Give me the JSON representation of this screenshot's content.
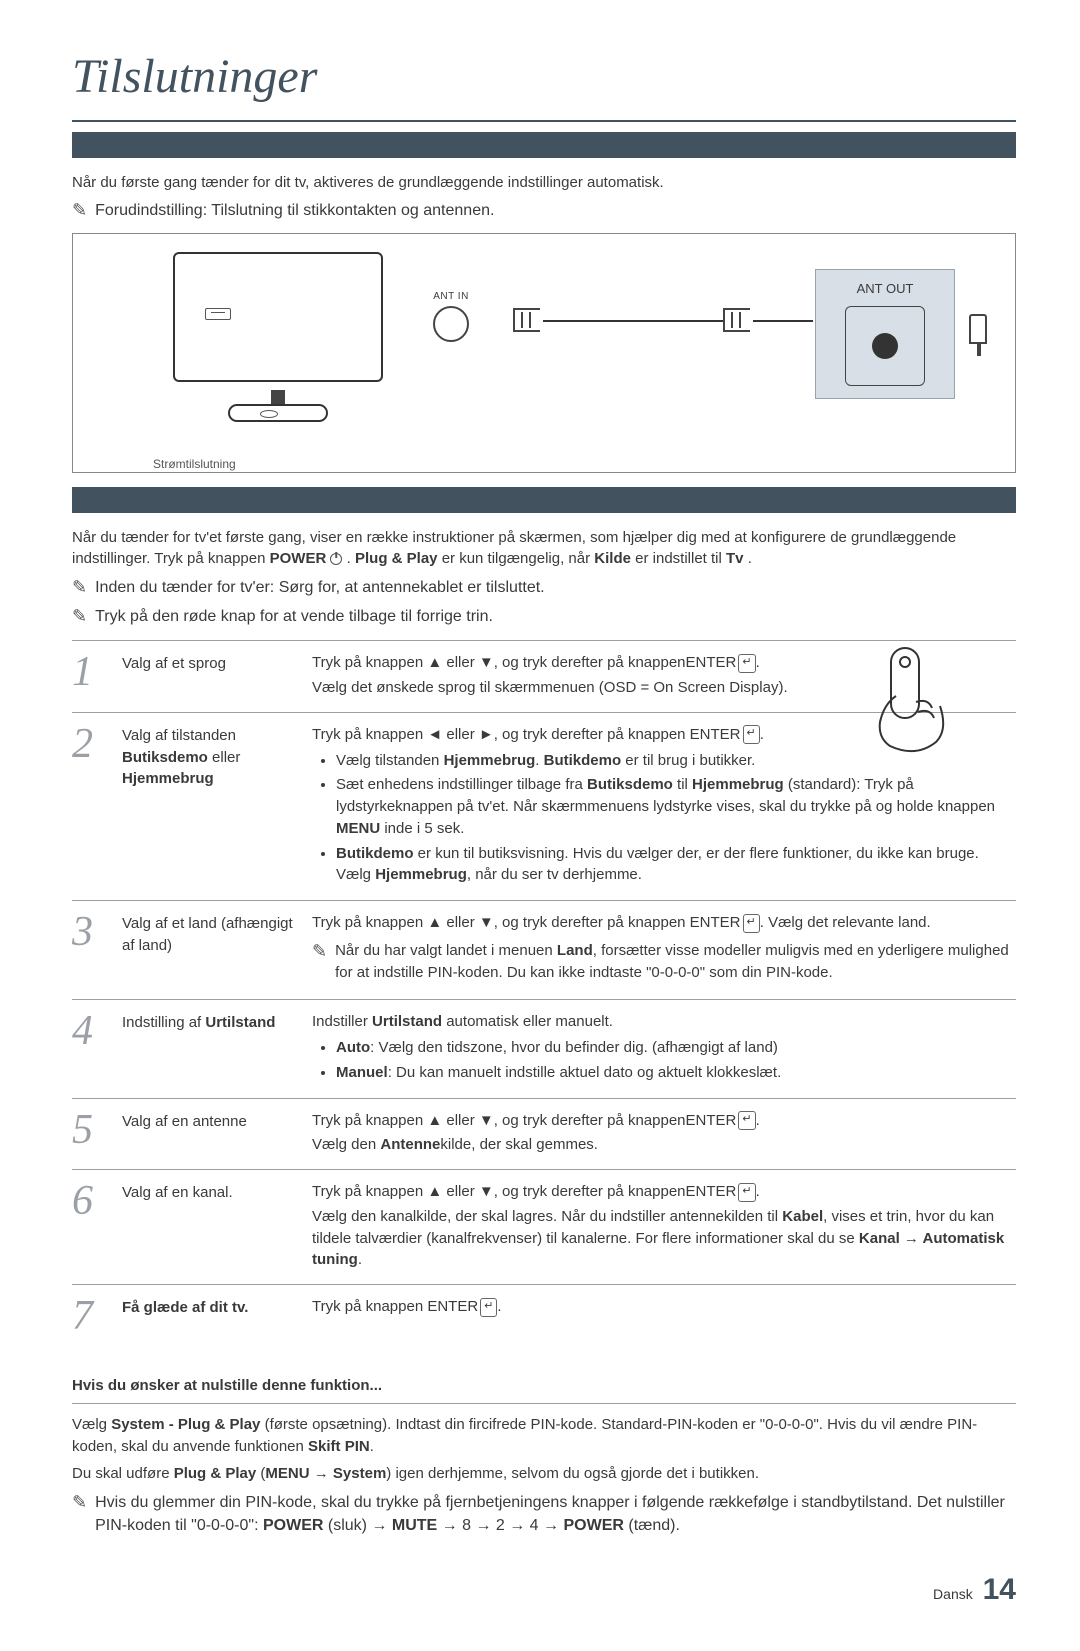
{
  "title": "Tilslutninger",
  "intro": "Når du første gang tænder for dit tv, aktiveres de grundlæggende indstillinger automatisk.",
  "intro_note": "Forudindstilling: Tilslutning til stikkontakten og antennen.",
  "diagram": {
    "ant_in": "ANT IN",
    "ant_out": "ANT OUT",
    "power_label": "Strømtilslutning"
  },
  "plug_intro_1": "Når du tænder for tv'et første gang, viser en række instruktioner på skærmen, som hjælper dig med at konfigurere de grundlæggende indstillinger. Tryk på knappen ",
  "plug_power": "POWER",
  "plug_intro_2": ". ",
  "plug_bold": "Plug & Play",
  "plug_intro_3": " er kun tilgængelig, når ",
  "plug_kilde": "Kilde",
  "plug_intro_4": " er indstillet til ",
  "plug_tv": "Tv",
  "plug_intro_5": ".",
  "note_ant": "Inden du tænder for tv'er: Sørg for, at antennekablet er tilsluttet.",
  "note_red": "Tryk på den røde knap for at vende tilbage til forrige trin.",
  "steps": [
    {
      "num": "1",
      "title": "Valg af et sprog",
      "body": "Tryk på knappen ▲ eller ▼, og tryk derefter på knappenENTER",
      "body2": "Vælg det ønskede sprog til skærmmenuen (OSD = On Screen Display)."
    },
    {
      "num": "2",
      "title_html": "Valg af tilstanden <b>Butiksdemo</b> eller <b>Hjemmebrug</b>",
      "line1": "Tryk på knappen ◄ eller ►, og tryk derefter på knappen ENTER",
      "bullets": [
        "Vælg tilstanden <b>Hjemmebrug</b>. <b>Butikdemo</b> er til brug i butikker.",
        "Sæt enhedens indstillinger tilbage fra <b>Butiksdemo</b> til <b>Hjemmebrug</b> (standard): Tryk på lydstyrkeknappen på tv'et. Når skærmmenuens lydstyrke vises, skal du trykke på og holde knappen <b>MENU</b> inde i 5 sek.",
        "<b>Butikdemo</b> er kun til butiksvisning. Hvis du vælger der, er der flere funktioner, du ikke kan bruge. Vælg <b>Hjemmebrug</b>, når du ser tv derhjemme."
      ]
    },
    {
      "num": "3",
      "title": "Valg af et land (afhængigt af land)",
      "line1": "Tryk på knappen ▲ eller ▼, og tryk derefter på knappen ENTER",
      "line1_after": ". Vælg det relevante land.",
      "note": "Når du har valgt landet i menuen <b>Land</b>, forsætter visse modeller muligvis med en yderligere mulighed for at indstille PIN-koden. Du kan ikke indtaste \"0-0-0-0\" som din PIN-kode."
    },
    {
      "num": "4",
      "title_html": "Indstilling af <b>Urtilstand</b>",
      "line1": "Indstiller <b>Urtilstand</b> automatisk eller manuelt.",
      "bullets": [
        "<b>Auto</b>: Vælg den tidszone, hvor du befinder dig. (afhængigt af land)",
        "<b>Manuel</b>: Du kan manuelt indstille aktuel dato og aktuelt klokkeslæt."
      ]
    },
    {
      "num": "5",
      "title": "Valg af en antenne",
      "line1": "Tryk på knappen ▲ eller ▼, og tryk derefter på knappenENTER",
      "line2": "Vælg den <b>Antenne</b>kilde, der skal gemmes."
    },
    {
      "num": "6",
      "title": "Valg af en kanal.",
      "line1": "Tryk på knappen ▲ eller ▼, og tryk derefter på knappenENTER",
      "line2": "Vælg den kanalkilde, der skal lagres. Når du indstiller antennekilden til <b>Kabel</b>, vises et trin, hvor du kan tildele talværdier (kanalfrekvenser) til kanalerne. For flere informationer skal du se <b>Kanal → Automatisk tuning</b>."
    },
    {
      "num": "7",
      "title_html": "<b>Få glæde af dit tv.</b>",
      "line1": "Tryk på knappen ENTER"
    }
  ],
  "reset": {
    "heading": "Hvis du ønsker at nulstille denne funktion...",
    "p1": "Vælg <b>System - Plug & Play</b> (første opsætning). Indtast din fircifrede PIN-kode. Standard-PIN-koden er \"0-0-0-0\". Hvis du vil ændre PIN-koden, skal du anvende funktionen <b>Skift PIN</b>.",
    "p2": "Du skal udføre <b>Plug & Play</b> (<b>MENU → System</b>) igen derhjemme, selvom du også gjorde det i butikken.",
    "note": "Hvis du glemmer din PIN-kode, skal du trykke på fjernbetjeningens knapper i følgende rækkefølge i standbytilstand. Det nulstiller PIN-koden til \"0-0-0-0\": <b>POWER</b> (sluk) → <b>MUTE</b> → 8 → 2 → 4 → <b>POWER</b> (tænd)."
  },
  "footer_lang": "Dansk",
  "footer_page": "14",
  "enter_glyph": "↵"
}
